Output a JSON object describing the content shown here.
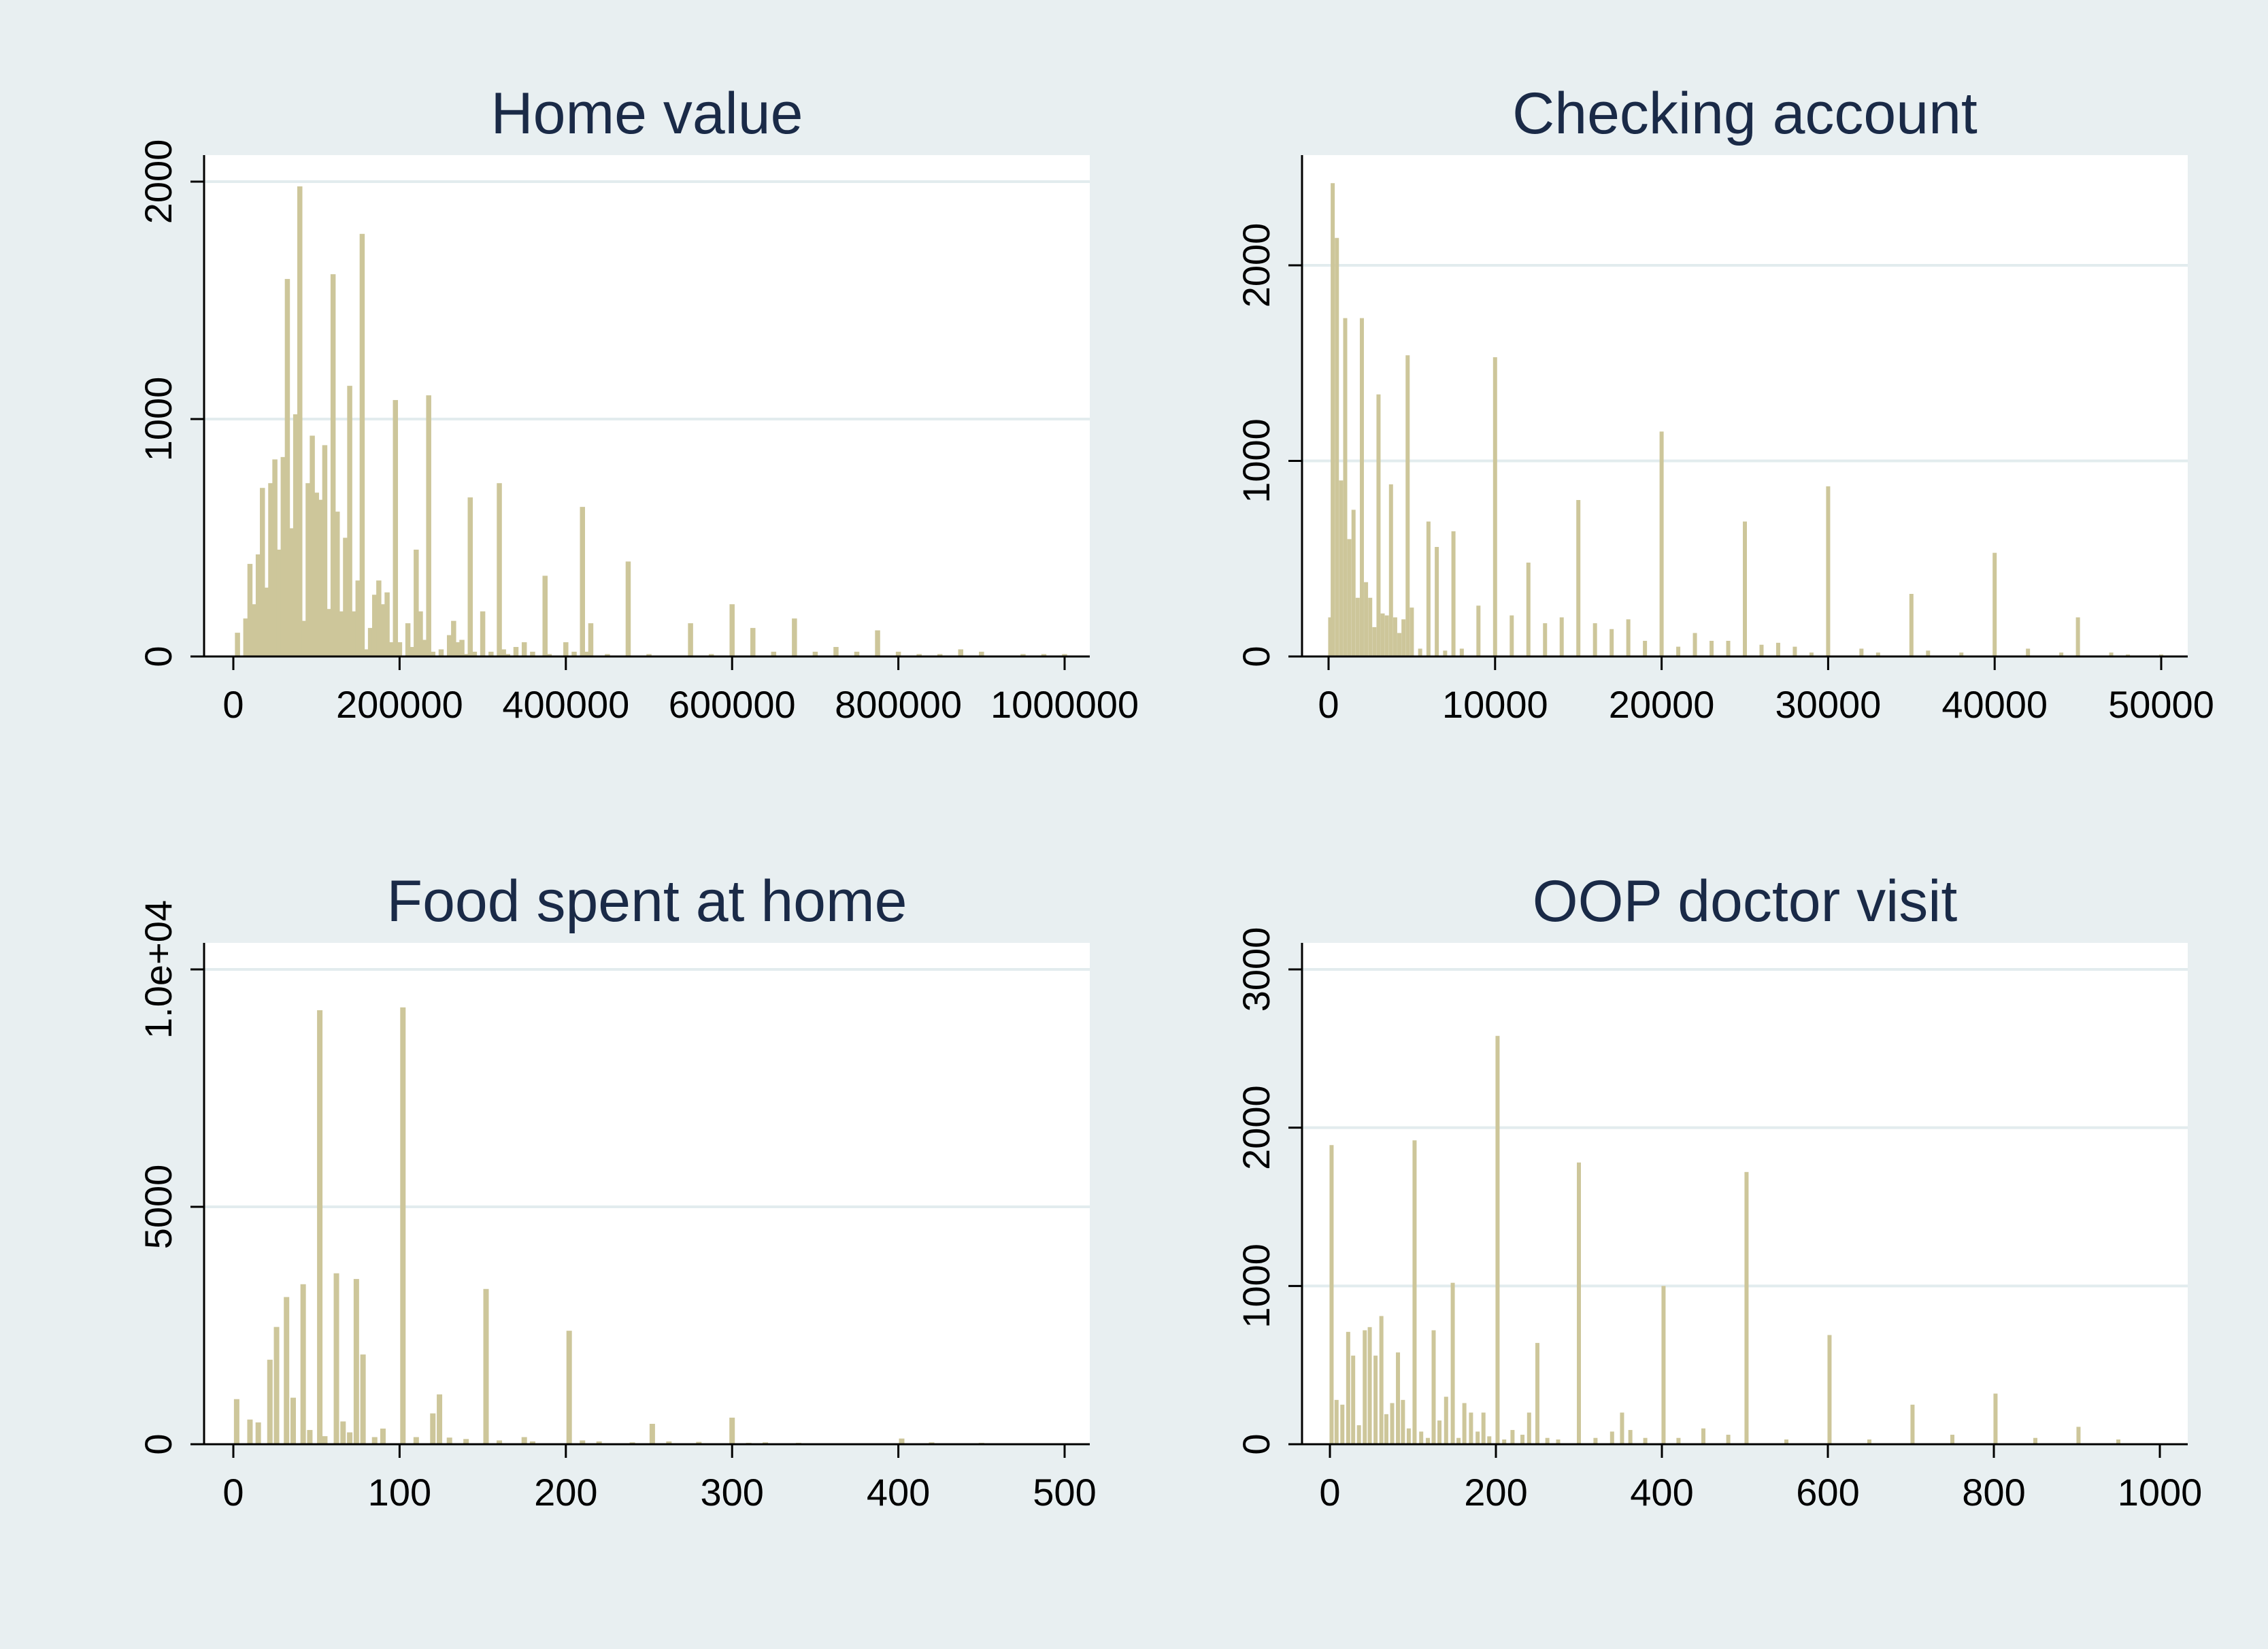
{
  "colors": {
    "background": "#e8eff1",
    "plot": "#ffffff",
    "bar": "#cdc69a",
    "title": "#1a2a47",
    "grid": "#e2ecee"
  },
  "chart_data": [
    {
      "type": "bar",
      "title": "Home value",
      "xlabel": "",
      "ylabel": "",
      "xlim": [
        0,
        1000000
      ],
      "ylim": [
        0,
        2000
      ],
      "xticks": [
        "0",
        "200000",
        "400000",
        "600000",
        "800000",
        "1000000"
      ],
      "yticks": [
        "0",
        "1000",
        "2000"
      ],
      "grid": true,
      "x": [
        5000,
        15000,
        20000,
        25000,
        30000,
        35000,
        40000,
        45000,
        50000,
        55000,
        60000,
        65000,
        70000,
        75000,
        80000,
        85000,
        90000,
        95000,
        100000,
        105000,
        110000,
        115000,
        120000,
        125000,
        130000,
        135000,
        140000,
        145000,
        150000,
        155000,
        160000,
        165000,
        170000,
        175000,
        180000,
        185000,
        190000,
        195000,
        200000,
        210000,
        215000,
        220000,
        225000,
        230000,
        235000,
        240000,
        250000,
        260000,
        265000,
        270000,
        275000,
        280000,
        285000,
        290000,
        300000,
        310000,
        320000,
        325000,
        330000,
        340000,
        350000,
        360000,
        375000,
        380000,
        400000,
        410000,
        420000,
        425000,
        430000,
        450000,
        475000,
        500000,
        550000,
        575000,
        600000,
        625000,
        650000,
        675000,
        700000,
        725000,
        750000,
        775000,
        800000,
        825000,
        850000,
        875000,
        900000,
        950000,
        975000,
        1000000
      ],
      "values": [
        100,
        160,
        390,
        220,
        430,
        710,
        290,
        730,
        830,
        450,
        840,
        1590,
        540,
        1020,
        1980,
        150,
        730,
        930,
        690,
        660,
        890,
        200,
        1610,
        610,
        190,
        500,
        1140,
        190,
        320,
        1780,
        30,
        120,
        260,
        320,
        220,
        270,
        60,
        1080,
        60,
        140,
        40,
        450,
        190,
        70,
        1100,
        20,
        30,
        90,
        150,
        60,
        70,
        10,
        670,
        20,
        190,
        20,
        730,
        30,
        10,
        40,
        60,
        20,
        340,
        10,
        60,
        20,
        630,
        20,
        140,
        10,
        400,
        10,
        140,
        10,
        220,
        120,
        20,
        160,
        20,
        40,
        20,
        110,
        20,
        10,
        10,
        30,
        20,
        10,
        10,
        10
      ]
    },
    {
      "type": "bar",
      "title": "Checking account",
      "xlabel": "",
      "ylabel": "",
      "xlim": [
        0,
        50000
      ],
      "ylim": [
        0,
        2000
      ],
      "xticks": [
        "0",
        "10000",
        "20000",
        "30000",
        "40000",
        "50000"
      ],
      "yticks": [
        "0",
        "1000",
        "2000"
      ],
      "grid": true,
      "x": [
        100,
        250,
        500,
        750,
        1000,
        1250,
        1500,
        1750,
        2000,
        2250,
        2500,
        2750,
        3000,
        3250,
        3500,
        3750,
        4000,
        4250,
        4500,
        4750,
        5000,
        5500,
        6000,
        6500,
        7000,
        7500,
        8000,
        9000,
        10000,
        11000,
        12000,
        13000,
        14000,
        15000,
        16000,
        17000,
        18000,
        19000,
        20000,
        21000,
        22000,
        23000,
        24000,
        25000,
        26000,
        27000,
        28000,
        29000,
        30000,
        32000,
        33000,
        35000,
        36000,
        38000,
        40000,
        42000,
        44000,
        45000,
        47000,
        48000,
        50000
      ],
      "values": [
        200,
        2420,
        2140,
        900,
        1730,
        600,
        750,
        300,
        1730,
        380,
        300,
        150,
        1340,
        220,
        210,
        880,
        200,
        120,
        190,
        1540,
        250,
        40,
        690,
        560,
        30,
        640,
        40,
        260,
        1530,
        210,
        480,
        170,
        200,
        800,
        170,
        140,
        190,
        80,
        1150,
        50,
        120,
        80,
        80,
        690,
        60,
        70,
        50,
        20,
        870,
        40,
        20,
        320,
        30,
        20,
        530,
        40,
        20,
        200,
        20,
        10,
        10
      ]
    },
    {
      "type": "bar",
      "title": "Food spent at home",
      "xlabel": "",
      "ylabel": "",
      "xlim": [
        0,
        500
      ],
      "ylim": [
        0,
        10000
      ],
      "xticks": [
        "0",
        "100",
        "200",
        "300",
        "400",
        "500"
      ],
      "yticks": [
        "0",
        "5000",
        "1.0e+04"
      ],
      "grid": true,
      "x": [
        2,
        10,
        15,
        22,
        26,
        32,
        36,
        42,
        46,
        52,
        55,
        62,
        66,
        70,
        74,
        78,
        85,
        90,
        102,
        110,
        120,
        124,
        130,
        140,
        152,
        160,
        175,
        180,
        202,
        210,
        220,
        240,
        252,
        262,
        280,
        300,
        310,
        320,
        340,
        360,
        380,
        402,
        420,
        450,
        480
      ],
      "values": [
        950,
        520,
        460,
        1780,
        2470,
        3100,
        980,
        3370,
        300,
        9140,
        170,
        3600,
        480,
        250,
        3480,
        1890,
        150,
        330,
        9200,
        150,
        650,
        1050,
        140,
        110,
        3270,
        80,
        150,
        60,
        2390,
        80,
        60,
        40,
        430,
        60,
        50,
        560,
        30,
        40,
        30,
        20,
        20,
        120,
        40,
        30,
        20
      ]
    },
    {
      "type": "bar",
      "title": "OOP doctor visit",
      "xlabel": "",
      "ylabel": "",
      "xlim": [
        0,
        1000
      ],
      "ylim": [
        0,
        3000
      ],
      "xticks": [
        "0",
        "200",
        "400",
        "600",
        "800",
        "1000"
      ],
      "yticks": [
        "0",
        "1000",
        "2000",
        "3000"
      ],
      "grid": true,
      "x": [
        2,
        8,
        15,
        22,
        28,
        35,
        42,
        48,
        55,
        62,
        68,
        75,
        82,
        88,
        95,
        102,
        110,
        118,
        125,
        132,
        140,
        148,
        155,
        162,
        170,
        178,
        185,
        192,
        202,
        210,
        220,
        232,
        240,
        250,
        262,
        275,
        300,
        320,
        340,
        352,
        362,
        380,
        402,
        420,
        450,
        480,
        502,
        550,
        602,
        650,
        702,
        750,
        802,
        850,
        902,
        950
      ],
      "values": [
        1890,
        280,
        250,
        710,
        560,
        120,
        720,
        740,
        560,
        810,
        190,
        260,
        580,
        280,
        100,
        1920,
        80,
        40,
        720,
        150,
        300,
        1020,
        40,
        260,
        200,
        80,
        200,
        50,
        2580,
        30,
        90,
        60,
        200,
        640,
        40,
        30,
        1780,
        40,
        80,
        200,
        90,
        40,
        1000,
        40,
        100,
        60,
        1720,
        30,
        690,
        30,
        250,
        60,
        320,
        40,
        110,
        30
      ]
    }
  ]
}
